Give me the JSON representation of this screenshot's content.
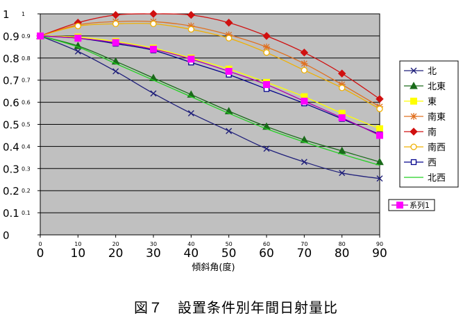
{
  "figure_caption": "図７　設置条件別年間日射量比",
  "chart_data": {
    "type": "line",
    "xlabel": "傾斜角(度)",
    "ylabel": "",
    "x": [
      0,
      10,
      20,
      30,
      40,
      50,
      60,
      70,
      80,
      90
    ],
    "xlim": [
      0,
      90
    ],
    "ylim": [
      0,
      1
    ],
    "x_ticks": [
      "0",
      "10",
      "20",
      "30",
      "40",
      "50",
      "60",
      "70",
      "80",
      "90"
    ],
    "x_ticks_small": [
      "0",
      "10",
      "20",
      "30",
      "40",
      "50",
      "60",
      "70",
      "80",
      "90"
    ],
    "y_ticks": [
      "0",
      "0.1",
      "0.2",
      "0.3",
      "0.4",
      "0.5",
      "0.6",
      "0.7",
      "0.8",
      "0.9",
      "1"
    ],
    "y_ticks_small": [
      "",
      "0.1",
      "0.2",
      "0.3",
      "0.4",
      "0.5",
      "0.6",
      "0.7",
      "0.8",
      "0.9",
      "1"
    ],
    "grid": true,
    "legend": "right",
    "plot_bg": "#c0c0c0",
    "series": [
      {
        "name": "北",
        "color": "#1f1f7a",
        "marker": "x",
        "values": [
          0.9,
          0.83,
          0.74,
          0.64,
          0.55,
          0.47,
          0.39,
          0.33,
          0.28,
          0.255
        ]
      },
      {
        "name": "北東",
        "color": "#1a6b1a",
        "marker": "triangle",
        "values": [
          0.9,
          0.855,
          0.785,
          0.71,
          0.635,
          0.56,
          0.49,
          0.43,
          0.38,
          0.33
        ]
      },
      {
        "name": "東",
        "color": "#ffff00",
        "marker": "square-filled",
        "values": [
          0.9,
          0.895,
          0.875,
          0.845,
          0.8,
          0.75,
          0.69,
          0.625,
          0.55,
          0.48
        ]
      },
      {
        "name": "南東",
        "color": "#e07020",
        "marker": "asterisk",
        "values": [
          0.9,
          0.95,
          0.965,
          0.965,
          0.945,
          0.905,
          0.85,
          0.775,
          0.68,
          0.58
        ]
      },
      {
        "name": "南",
        "color": "#d01010",
        "marker": "diamond",
        "values": [
          0.9,
          0.96,
          0.995,
          1.0,
          0.995,
          0.96,
          0.9,
          0.825,
          0.73,
          0.615
        ]
      },
      {
        "name": "南西",
        "color": "#f0b000",
        "marker": "circle-open",
        "values": [
          0.9,
          0.945,
          0.955,
          0.955,
          0.93,
          0.89,
          0.825,
          0.745,
          0.665,
          0.57
        ]
      },
      {
        "name": "西",
        "color": "#00008b",
        "marker": "square-open",
        "values": [
          0.9,
          0.89,
          0.865,
          0.835,
          0.78,
          0.725,
          0.66,
          0.595,
          0.525,
          0.455
        ]
      },
      {
        "name": "北西",
        "color": "#22d022",
        "marker": "none",
        "values": [
          0.9,
          0.85,
          0.775,
          0.7,
          0.625,
          0.55,
          0.48,
          0.42,
          0.365,
          0.315
        ]
      },
      {
        "name": "系列1",
        "color": "#ff00ff",
        "marker": "square-filled",
        "line_color": "#b000b0",
        "values": [
          0.9,
          0.89,
          0.87,
          0.84,
          0.795,
          0.74,
          0.68,
          0.605,
          0.53,
          0.45
        ]
      }
    ]
  }
}
